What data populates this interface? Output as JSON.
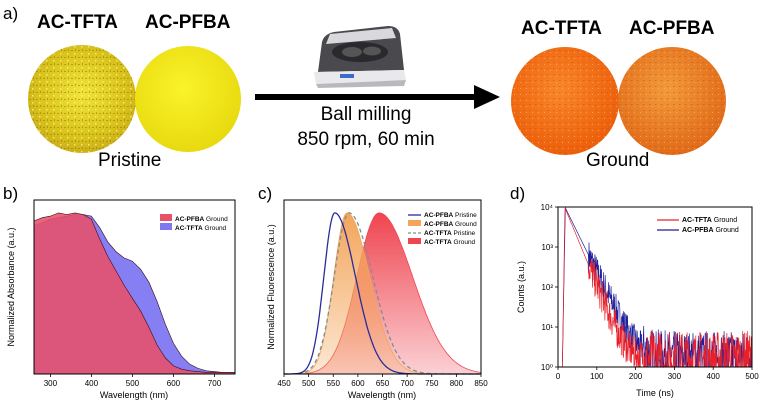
{
  "panel_a": {
    "label": "a)",
    "left_titles": [
      "AC-TFTA",
      "AC-PFBA"
    ],
    "right_titles": [
      "AC-TFTA",
      "AC-PFBA"
    ],
    "left_caption": "Pristine",
    "right_caption": "Ground",
    "process_line1": "Ball milling",
    "process_line2": "850 rpm, 60 min",
    "colors": {
      "tfta_pristine": "#e6d21a",
      "pfba_pristine": "#f0e814",
      "tfta_ground": "#f26a10",
      "pfba_ground": "#ec7a20",
      "arrow": "#000000"
    }
  },
  "chart_data": [
    {
      "panel": "b)",
      "type": "area",
      "xlabel": "Wavelength (nm)",
      "ylabel": "Normalized Absorbance (a.u.)",
      "xlim": [
        260,
        750
      ],
      "ylim": [
        0,
        1.08
      ],
      "xticks": [
        300,
        400,
        500,
        600,
        700
      ],
      "legend_position": "top-right",
      "series": [
        {
          "name": "AC-PFBA",
          "suffix": " Ground",
          "color": "#e8516a",
          "x": [
            260,
            280,
            300,
            320,
            340,
            360,
            380,
            400,
            420,
            440,
            460,
            480,
            500,
            520,
            540,
            560,
            580,
            600,
            620,
            640,
            660,
            680,
            700,
            720,
            750
          ],
          "y": [
            0.95,
            0.97,
            0.98,
            1.0,
            0.99,
            1.0,
            0.99,
            0.96,
            0.84,
            0.73,
            0.64,
            0.55,
            0.47,
            0.39,
            0.29,
            0.18,
            0.1,
            0.05,
            0.03,
            0.02,
            0.015,
            0.01,
            0.01,
            0.01,
            0.01
          ]
        },
        {
          "name": "AC-TFTA",
          "suffix": " Ground",
          "color": "#7f78f2",
          "x": [
            260,
            280,
            300,
            320,
            340,
            360,
            380,
            400,
            420,
            440,
            460,
            480,
            500,
            520,
            540,
            560,
            580,
            600,
            620,
            640,
            660,
            680,
            700,
            720,
            750
          ],
          "y": [
            0.92,
            0.94,
            0.96,
            0.97,
            0.98,
            0.99,
            0.99,
            0.98,
            0.91,
            0.82,
            0.76,
            0.72,
            0.7,
            0.65,
            0.57,
            0.45,
            0.31,
            0.19,
            0.11,
            0.06,
            0.035,
            0.02,
            0.015,
            0.01,
            0.01
          ]
        }
      ]
    },
    {
      "panel": "c)",
      "type": "line",
      "xlabel": "Wavelength (nm)",
      "ylabel": "Normalized Fluorescence (a.u.)",
      "xlim": [
        450,
        850
      ],
      "ylim": [
        0,
        1.08
      ],
      "xticks": [
        450,
        500,
        550,
        600,
        650,
        700,
        750,
        800,
        850
      ],
      "legend_position": "top-right",
      "series": [
        {
          "name": "AC-PFBA",
          "suffix": " Pristine",
          "style": "solid-line",
          "color": "#2b2b9a",
          "peak": 553,
          "sigma_left": 22,
          "sigma_right": 42
        },
        {
          "name": "AC-PFBA",
          "suffix": " Ground",
          "style": "filled-area",
          "color": "#f3a55a",
          "peak": 578,
          "sigma_left": 27,
          "sigma_right": 46
        },
        {
          "name": "AC-TFTA",
          "suffix": " Pristine",
          "style": "dashed-line",
          "color": "#7f8f8f",
          "peak": 582,
          "sigma_left": 30,
          "sigma_right": 48
        },
        {
          "name": "AC-TFTA",
          "suffix": " Ground",
          "style": "filled-area",
          "color": "#ef4550",
          "peak": 643,
          "sigma_left": 45,
          "sigma_right": 68
        }
      ]
    },
    {
      "panel": "d)",
      "type": "line",
      "xlabel": "Time (ns)",
      "ylabel": "Counts (a.u.)",
      "xlim": [
        0,
        500
      ],
      "yscale": "log",
      "ylim": [
        1,
        10000
      ],
      "xticks": [
        0,
        100,
        200,
        300,
        400,
        500
      ],
      "yticks": [
        1,
        10,
        100,
        1000,
        10000
      ],
      "ytick_labels": [
        "10⁰",
        "10¹",
        "10²",
        "10³",
        "10⁴"
      ],
      "legend_position": "top-right",
      "series": [
        {
          "name": "AC-TFTA",
          "suffix": " Ground",
          "color": "#e8202a",
          "onset": 12,
          "peak_time": 18,
          "peak": 9500,
          "tau": 18.5,
          "background": 1.6,
          "noise": 0.55
        },
        {
          "name": "AC-PFBA",
          "suffix": " Ground",
          "color": "#1f1f9a",
          "onset": 12,
          "peak_time": 19,
          "peak": 9500,
          "tau": 22.0,
          "background": 1.8,
          "noise": 0.5
        }
      ]
    }
  ]
}
